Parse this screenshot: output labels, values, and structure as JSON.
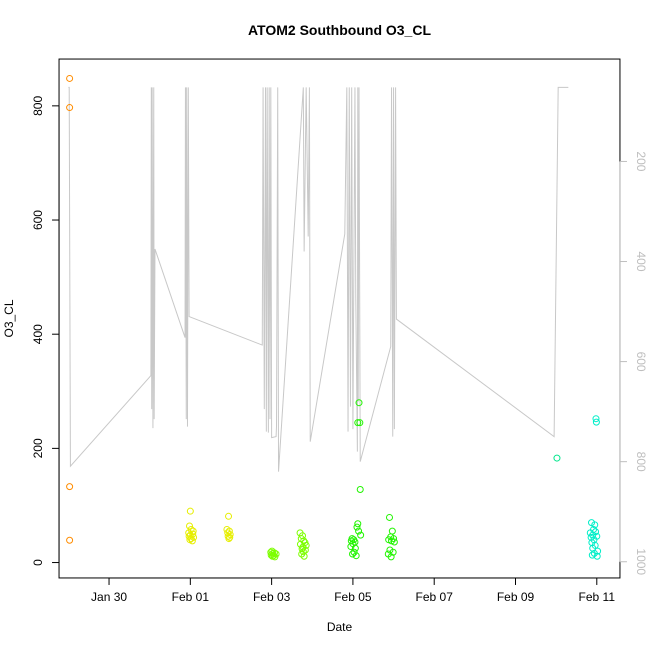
{
  "chart_data": {
    "type": "scatter",
    "title": "ATOM2 Southbound O3_CL",
    "xlabel": "Date",
    "ylabel": "O3_CL",
    "x_ticks": [
      {
        "label": "Jan 30",
        "day": 30
      },
      {
        "label": "Feb 01",
        "day": 32
      },
      {
        "label": "Feb 03",
        "day": 34
      },
      {
        "label": "Feb 05",
        "day": 36
      },
      {
        "label": "Feb 07",
        "day": 38
      },
      {
        "label": "Feb 09",
        "day": 40
      },
      {
        "label": "Feb 11",
        "day": 42
      }
    ],
    "x_unit": "day of year (Jan 1 = 1)",
    "xlim": [
      28.77,
      42.57
    ],
    "ylim": [
      -27,
      882
    ],
    "y_ticks": [
      0,
      200,
      400,
      600,
      800
    ],
    "secondary_axis": {
      "description": "right axis (reversed), associated with grey line series",
      "ticks": [
        200,
        400,
        600,
        800,
        1000
      ],
      "range": [
        -4.66,
        1032.4
      ],
      "color": "#bebebe"
    },
    "grid": false,
    "series": [
      {
        "color": "#ff8c00",
        "points": [
          [
            29.03,
            848
          ],
          [
            29.03,
            797
          ],
          [
            29.03,
            133
          ],
          [
            29.03,
            39
          ]
        ]
      },
      {
        "color": "#e6ee00",
        "points": [
          [
            32.0,
            90
          ],
          [
            31.98,
            64
          ],
          [
            32.02,
            58
          ],
          [
            32.07,
            55
          ],
          [
            31.96,
            52
          ],
          [
            32.06,
            50
          ],
          [
            32.0,
            48
          ],
          [
            31.97,
            46
          ],
          [
            32.08,
            44
          ],
          [
            32.02,
            42
          ],
          [
            31.99,
            40
          ],
          [
            32.05,
            38
          ],
          [
            32.94,
            81
          ],
          [
            32.9,
            58
          ],
          [
            32.96,
            55
          ],
          [
            32.92,
            52
          ],
          [
            32.98,
            49
          ],
          [
            32.93,
            46
          ],
          [
            32.97,
            44
          ],
          [
            32.95,
            42
          ]
        ]
      },
      {
        "color": "#7dfe00",
        "points": [
          [
            34.01,
            20
          ],
          [
            33.98,
            18
          ],
          [
            34.07,
            17
          ],
          [
            34.03,
            16
          ],
          [
            34.11,
            15
          ],
          [
            33.99,
            13
          ],
          [
            34.05,
            12
          ],
          [
            34.02,
            11
          ],
          [
            34.08,
            10
          ],
          [
            34.7,
            52
          ],
          [
            34.76,
            47
          ],
          [
            34.73,
            42
          ],
          [
            34.79,
            38
          ],
          [
            34.82,
            35
          ],
          [
            34.71,
            32
          ],
          [
            34.85,
            30
          ],
          [
            34.77,
            27
          ],
          [
            34.75,
            24
          ],
          [
            34.83,
            22
          ],
          [
            34.78,
            19
          ],
          [
            34.74,
            15
          ],
          [
            34.8,
            11
          ]
        ]
      },
      {
        "color": "#21f400",
        "points": [
          [
            36.15,
            280
          ],
          [
            36.12,
            245
          ],
          [
            36.17,
            245
          ],
          [
            36.18,
            128
          ],
          [
            36.12,
            68
          ],
          [
            36.1,
            62
          ],
          [
            36.14,
            55
          ],
          [
            36.19,
            48
          ],
          [
            35.98,
            42
          ],
          [
            36.02,
            40
          ],
          [
            35.96,
            38
          ],
          [
            36.05,
            36
          ],
          [
            36.0,
            33
          ],
          [
            35.95,
            28
          ],
          [
            36.06,
            25
          ],
          [
            36.03,
            18
          ],
          [
            35.99,
            15
          ],
          [
            36.08,
            12
          ],
          [
            36.9,
            79
          ],
          [
            36.97,
            55
          ],
          [
            36.93,
            45
          ],
          [
            37.0,
            42
          ],
          [
            36.88,
            40
          ],
          [
            36.95,
            38
          ],
          [
            37.02,
            36
          ],
          [
            36.91,
            22
          ],
          [
            36.99,
            18
          ],
          [
            36.87,
            15
          ],
          [
            36.94,
            10
          ]
        ]
      },
      {
        "color": "#00e68c",
        "points": [
          [
            41.02,
            183
          ]
        ]
      },
      {
        "color": "#00eec8",
        "points": [
          [
            41.98,
            252
          ],
          [
            41.99,
            246
          ],
          [
            41.87,
            70
          ],
          [
            41.95,
            66
          ],
          [
            41.92,
            58
          ],
          [
            41.97,
            54
          ],
          [
            41.84,
            52
          ],
          [
            41.9,
            48
          ],
          [
            42.0,
            46
          ],
          [
            41.86,
            44
          ],
          [
            41.93,
            40
          ],
          [
            41.88,
            35
          ],
          [
            41.96,
            30
          ],
          [
            41.9,
            25
          ],
          [
            42.02,
            20
          ],
          [
            41.94,
            16
          ],
          [
            41.89,
            13
          ],
          [
            42.01,
            11
          ]
        ]
      }
    ],
    "line_series": {
      "color": "#c8c8c8",
      "axis": "secondary",
      "points": [
        [
          29.0,
          52
        ],
        [
          29.02,
          52
        ],
        [
          29.05,
          809
        ],
        [
          31.03,
          628
        ],
        [
          31.04,
          52
        ],
        [
          31.05,
          695
        ],
        [
          31.06,
          52
        ],
        [
          31.08,
          733
        ],
        [
          31.1,
          52
        ],
        [
          31.11,
          715
        ],
        [
          31.13,
          375
        ],
        [
          31.87,
          552
        ],
        [
          31.88,
          52
        ],
        [
          31.9,
          715
        ],
        [
          31.91,
          52
        ],
        [
          31.93,
          730
        ],
        [
          31.95,
          52
        ],
        [
          31.97,
          510
        ],
        [
          33.77,
          567
        ],
        [
          33.79,
          52
        ],
        [
          33.82,
          695
        ],
        [
          33.85,
          52
        ],
        [
          33.87,
          740
        ],
        [
          33.89,
          52
        ],
        [
          33.92,
          742
        ],
        [
          33.94,
          52
        ],
        [
          33.96,
          715
        ],
        [
          33.98,
          52
        ],
        [
          34.0,
          752
        ],
        [
          34.11,
          750
        ],
        [
          34.12,
          730
        ],
        [
          34.15,
          52
        ],
        [
          34.17,
          820
        ],
        [
          34.78,
          52
        ],
        [
          34.8,
          380
        ],
        [
          34.85,
          52
        ],
        [
          34.9,
          350
        ],
        [
          34.93,
          52
        ],
        [
          34.95,
          760
        ],
        [
          35.8,
          345
        ],
        [
          35.85,
          52
        ],
        [
          35.88,
          740
        ],
        [
          35.91,
          52
        ],
        [
          35.94,
          690
        ],
        [
          35.97,
          52
        ],
        [
          36.0,
          735
        ],
        [
          36.05,
          52
        ],
        [
          36.07,
          470
        ],
        [
          36.11,
          780
        ],
        [
          36.12,
          52
        ],
        [
          36.13,
          680
        ],
        [
          36.15,
          52
        ],
        [
          36.18,
          800
        ],
        [
          36.93,
          570
        ],
        [
          36.95,
          52
        ],
        [
          36.98,
          750
        ],
        [
          37.0,
          52
        ],
        [
          37.02,
          735
        ],
        [
          37.05,
          52
        ],
        [
          37.07,
          515
        ],
        [
          40.95,
          750
        ],
        [
          41.05,
          52
        ],
        [
          41.3,
          52
        ]
      ]
    }
  }
}
